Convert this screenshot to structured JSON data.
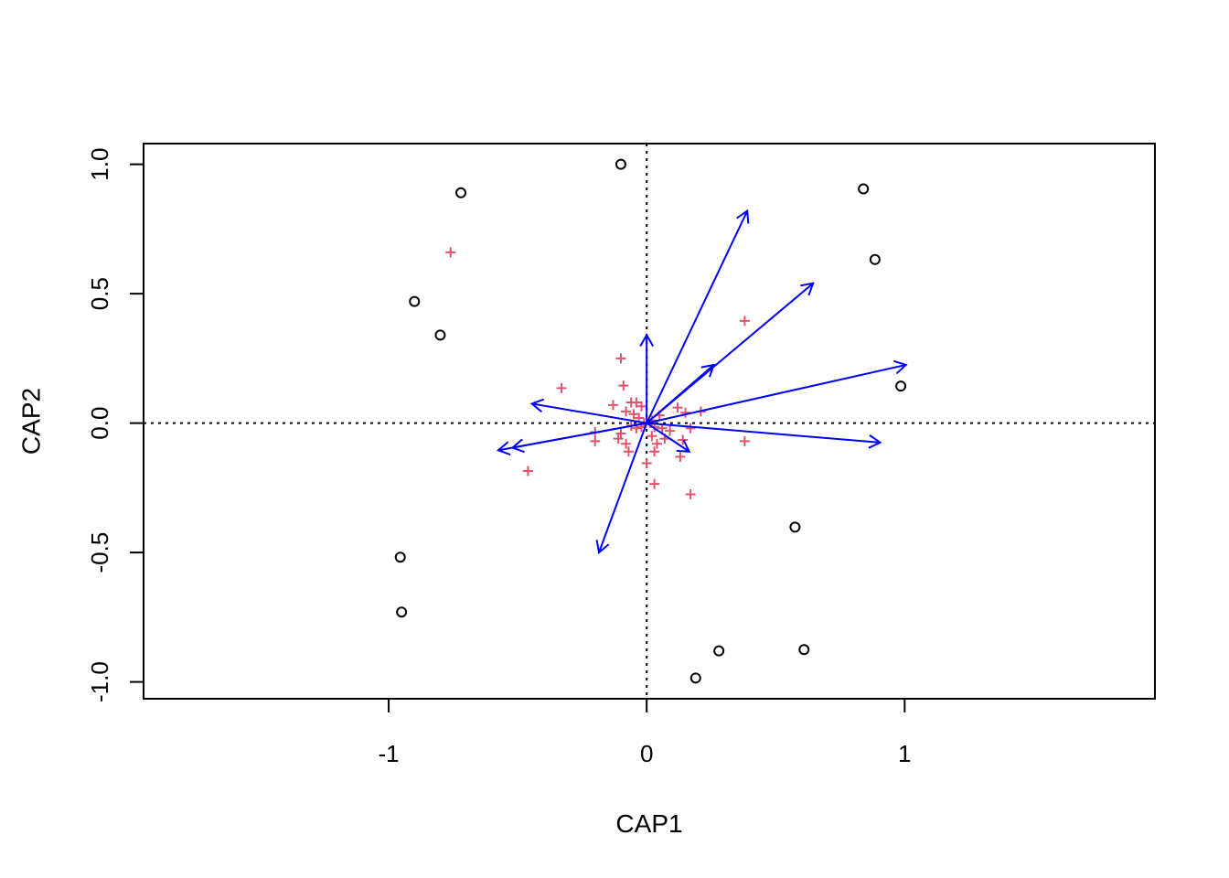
{
  "chart_data": {
    "type": "scatter",
    "title": "",
    "xlabel": "CAP1",
    "ylabel": "CAP2",
    "xlim": [
      -1.95,
      1.97
    ],
    "ylim": [
      -1.065,
      1.08
    ],
    "x_ticks": [
      -1,
      0,
      1
    ],
    "x_tick_labels": [
      "-1",
      "0",
      "1"
    ],
    "y_ticks": [
      -1.0,
      -0.5,
      0.0,
      0.5,
      1.0
    ],
    "y_tick_labels": [
      "-1.0",
      "-0.5",
      "0.0",
      "0.5",
      "1.0"
    ],
    "grid": false,
    "reference_lines": [
      {
        "axis": "x",
        "value": 0,
        "style": "dotted"
      },
      {
        "axis": "y",
        "value": 0,
        "style": "dotted"
      }
    ],
    "colors": {
      "sites": "#000000",
      "species": "#DF536B",
      "biplot": "#0000FF",
      "reference": "#000000"
    },
    "sites": [
      {
        "x": -0.1,
        "y": 1.0
      },
      {
        "x": -0.72,
        "y": 0.89
      },
      {
        "x": -0.9,
        "y": 0.47
      },
      {
        "x": -0.8,
        "y": 0.34
      },
      {
        "x": 0.84,
        "y": 0.905
      },
      {
        "x": 0.885,
        "y": 0.632
      },
      {
        "x": 0.985,
        "y": 0.143
      },
      {
        "x": 0.575,
        "y": -0.402
      },
      {
        "x": 0.61,
        "y": -0.875
      },
      {
        "x": 0.28,
        "y": -0.88
      },
      {
        "x": 0.19,
        "y": -0.985
      },
      {
        "x": -0.955,
        "y": -0.518
      },
      {
        "x": -0.95,
        "y": -0.73
      }
    ],
    "species": [
      {
        "x": -0.76,
        "y": 0.66
      },
      {
        "x": 0.38,
        "y": 0.395
      },
      {
        "x": -0.1,
        "y": 0.25
      },
      {
        "x": -0.09,
        "y": 0.145
      },
      {
        "x": -0.33,
        "y": 0.135
      },
      {
        "x": -0.13,
        "y": 0.07
      },
      {
        "x": -0.06,
        "y": 0.08
      },
      {
        "x": -0.04,
        "y": 0.08
      },
      {
        "x": -0.02,
        "y": 0.065
      },
      {
        "x": 0.12,
        "y": 0.06
      },
      {
        "x": 0.21,
        "y": 0.045
      },
      {
        "x": 0.15,
        "y": 0.04
      },
      {
        "x": -0.08,
        "y": 0.045
      },
      {
        "x": -0.05,
        "y": 0.035
      },
      {
        "x": 0.05,
        "y": 0.03
      },
      {
        "x": -0.03,
        "y": 0.02
      },
      {
        "x": 0.02,
        "y": 0.01
      },
      {
        "x": -0.01,
        "y": 0.0
      },
      {
        "x": -0.06,
        "y": -0.01
      },
      {
        "x": -0.04,
        "y": -0.02
      },
      {
        "x": -0.02,
        "y": -0.015
      },
      {
        "x": 0.03,
        "y": -0.015
      },
      {
        "x": 0.06,
        "y": -0.02
      },
      {
        "x": 0.09,
        "y": -0.03
      },
      {
        "x": 0.17,
        "y": -0.02
      },
      {
        "x": -0.2,
        "y": -0.035
      },
      {
        "x": -0.1,
        "y": -0.04
      },
      {
        "x": -0.11,
        "y": -0.06
      },
      {
        "x": -0.2,
        "y": -0.07
      },
      {
        "x": 0.02,
        "y": -0.05
      },
      {
        "x": 0.07,
        "y": -0.06
      },
      {
        "x": 0.14,
        "y": -0.065
      },
      {
        "x": 0.38,
        "y": -0.07
      },
      {
        "x": -0.08,
        "y": -0.08
      },
      {
        "x": 0.04,
        "y": -0.08
      },
      {
        "x": -0.07,
        "y": -0.11
      },
      {
        "x": 0.03,
        "y": -0.11
      },
      {
        "x": 0.13,
        "y": -0.13
      },
      {
        "x": 0.0,
        "y": -0.155
      },
      {
        "x": -0.46,
        "y": -0.185
      },
      {
        "x": 0.03,
        "y": -0.235
      },
      {
        "x": 0.17,
        "y": -0.275
      }
    ],
    "biplot_arrows": [
      {
        "x": 0.39,
        "y": 0.82
      },
      {
        "x": 0.645,
        "y": 0.54
      },
      {
        "x": 0.26,
        "y": 0.225
      },
      {
        "x": 0.0,
        "y": 0.34
      },
      {
        "x": 1.005,
        "y": 0.225
      },
      {
        "x": 0.905,
        "y": -0.075
      },
      {
        "x": 0.165,
        "y": -0.11
      },
      {
        "x": -0.445,
        "y": 0.075
      },
      {
        "x": -0.52,
        "y": -0.095
      },
      {
        "x": -0.575,
        "y": -0.105
      },
      {
        "x": -0.185,
        "y": -0.5
      }
    ]
  }
}
